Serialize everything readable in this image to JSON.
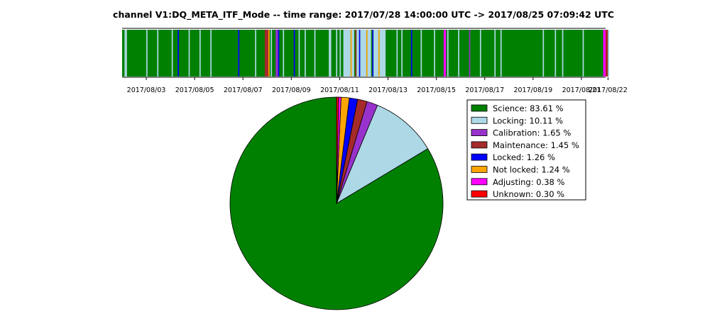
{
  "title": "channel V1:DQ_META_ITF_Mode -- time range: 2017/07/28 14:00:00 UTC -> 2017/08/25 07:09:42 UTC",
  "chart_data": [
    {
      "type": "timeline",
      "x_range": [
        "2017/08/02",
        "2017/08/22"
      ],
      "tick_labels": [
        "2017/08/03",
        "2017/08/05",
        "2017/08/07",
        "2017/08/09",
        "2017/08/11",
        "2017/08/13",
        "2017/08/15",
        "2017/08/17",
        "2017/08/19",
        "2017/08/21",
        "2017/08/22"
      ],
      "background_state": "Science",
      "state_colors": {
        "Science": "#008000",
        "Locking": "#add8e6",
        "Calibration": "#9932cc",
        "Maintenance": "#a52a2a",
        "Locked": "#0000ff",
        "Not locked": "#ffa500",
        "Adjusting": "#ff00ff",
        "Unknown": "#ff0000"
      },
      "segments": [
        {
          "start": 0.1,
          "end": 0.2,
          "state": "Locking"
        },
        {
          "start": 1.0,
          "end": 1.05,
          "state": "Locking"
        },
        {
          "start": 1.45,
          "end": 1.5,
          "state": "Locking"
        },
        {
          "start": 2.05,
          "end": 2.1,
          "state": "Locking"
        },
        {
          "start": 2.3,
          "end": 2.35,
          "state": "Locked"
        },
        {
          "start": 2.75,
          "end": 2.8,
          "state": "Locking"
        },
        {
          "start": 3.2,
          "end": 3.25,
          "state": "Locking"
        },
        {
          "start": 3.65,
          "end": 3.7,
          "state": "Locking"
        },
        {
          "start": 4.8,
          "end": 4.85,
          "state": "Locked"
        },
        {
          "start": 5.5,
          "end": 5.55,
          "state": "Locking"
        },
        {
          "start": 5.9,
          "end": 6.05,
          "state": "Maintenance"
        },
        {
          "start": 6.05,
          "end": 6.1,
          "state": "Not locked"
        },
        {
          "start": 6.15,
          "end": 6.2,
          "state": "Locking"
        },
        {
          "start": 6.35,
          "end": 6.45,
          "state": "Calibration"
        },
        {
          "start": 6.45,
          "end": 6.5,
          "state": "Locked"
        },
        {
          "start": 6.65,
          "end": 6.7,
          "state": "Locking"
        },
        {
          "start": 7.1,
          "end": 7.15,
          "state": "Locked"
        },
        {
          "start": 7.3,
          "end": 7.35,
          "state": "Locking"
        },
        {
          "start": 7.55,
          "end": 7.6,
          "state": "Locking"
        },
        {
          "start": 7.95,
          "end": 8.0,
          "state": "Locking"
        },
        {
          "start": 8.55,
          "end": 8.65,
          "state": "Locking"
        },
        {
          "start": 8.85,
          "end": 8.9,
          "state": "Locking"
        },
        {
          "start": 9.0,
          "end": 9.05,
          "state": "Locking"
        },
        {
          "start": 9.15,
          "end": 9.45,
          "state": "Locking"
        },
        {
          "start": 9.45,
          "end": 9.5,
          "state": "Not locked"
        },
        {
          "start": 9.5,
          "end": 9.6,
          "state": "Locking"
        },
        {
          "start": 9.65,
          "end": 9.7,
          "state": "Maintenance"
        },
        {
          "start": 9.7,
          "end": 9.8,
          "state": "Locking"
        },
        {
          "start": 9.8,
          "end": 9.85,
          "state": "Locked"
        },
        {
          "start": 9.85,
          "end": 10.1,
          "state": "Locking"
        },
        {
          "start": 10.1,
          "end": 10.15,
          "state": "Not locked"
        },
        {
          "start": 10.15,
          "end": 10.3,
          "state": "Locking"
        },
        {
          "start": 10.35,
          "end": 10.4,
          "state": "Locked"
        },
        {
          "start": 10.4,
          "end": 10.6,
          "state": "Locking"
        },
        {
          "start": 10.6,
          "end": 10.65,
          "state": "Not locked"
        },
        {
          "start": 10.65,
          "end": 10.9,
          "state": "Locking"
        },
        {
          "start": 11.35,
          "end": 11.4,
          "state": "Locking"
        },
        {
          "start": 11.55,
          "end": 11.6,
          "state": "Locking"
        },
        {
          "start": 11.95,
          "end": 12.0,
          "state": "Locked"
        },
        {
          "start": 12.35,
          "end": 12.4,
          "state": "Locking"
        },
        {
          "start": 12.9,
          "end": 12.95,
          "state": "Locking"
        },
        {
          "start": 13.3,
          "end": 13.4,
          "state": "Adjusting"
        },
        {
          "start": 13.45,
          "end": 13.5,
          "state": "Locking"
        },
        {
          "start": 13.9,
          "end": 13.95,
          "state": "Locking"
        },
        {
          "start": 14.35,
          "end": 14.4,
          "state": "Calibration"
        },
        {
          "start": 14.8,
          "end": 14.85,
          "state": "Locking"
        },
        {
          "start": 15.4,
          "end": 15.45,
          "state": "Locking"
        },
        {
          "start": 15.65,
          "end": 15.7,
          "state": "Locking"
        },
        {
          "start": 17.4,
          "end": 17.45,
          "state": "Locking"
        },
        {
          "start": 17.9,
          "end": 17.95,
          "state": "Locking"
        },
        {
          "start": 18.2,
          "end": 18.25,
          "state": "Locking"
        },
        {
          "start": 19.05,
          "end": 19.1,
          "state": "Locking"
        },
        {
          "start": 19.9,
          "end": 20.0,
          "state": "Adjusting"
        },
        {
          "start": 20.0,
          "end": 20.1,
          "state": "Maintenance"
        },
        {
          "start": 20.1,
          "end": 20.15,
          "state": "Locking"
        }
      ]
    },
    {
      "type": "pie",
      "series": [
        {
          "name": "Science",
          "value": 83.61,
          "color": "#008000"
        },
        {
          "name": "Locking",
          "value": 10.11,
          "color": "#add8e6"
        },
        {
          "name": "Calibration",
          "value": 1.65,
          "color": "#9932cc"
        },
        {
          "name": "Maintenance",
          "value": 1.45,
          "color": "#a52a2a"
        },
        {
          "name": "Locked",
          "value": 1.26,
          "color": "#0000ff"
        },
        {
          "name": "Not locked",
          "value": 1.24,
          "color": "#ffa500"
        },
        {
          "name": "Adjusting",
          "value": 0.38,
          "color": "#ff00ff"
        },
        {
          "name": "Unknown",
          "value": 0.3,
          "color": "#ff0000"
        }
      ],
      "legend": {
        "position": "right",
        "entries": [
          "Science: 83.61 %",
          "Locking: 10.11 %",
          "Calibration: 1.65 %",
          "Maintenance: 1.45 %",
          "Locked: 1.26 %",
          "Not locked: 1.24 %",
          "Adjusting: 0.38 %",
          "Unknown: 0.30 %"
        ]
      }
    }
  ]
}
